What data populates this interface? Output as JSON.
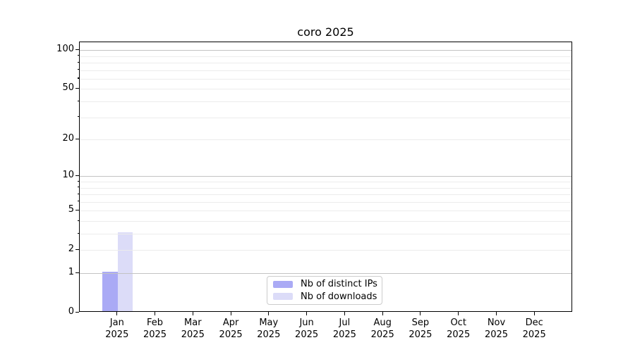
{
  "chart_data": {
    "type": "bar",
    "title": "coro 2025",
    "categories": [
      "Jan",
      "Feb",
      "Mar",
      "Apr",
      "May",
      "Jun",
      "Jul",
      "Aug",
      "Sep",
      "Oct",
      "Nov",
      "Dec"
    ],
    "category_year": "2025",
    "series": [
      {
        "name": "Nb of distinct IPs",
        "color": "#aaaaf5",
        "values": [
          1,
          0,
          0,
          0,
          0,
          0,
          0,
          0,
          0,
          0,
          0,
          0
        ]
      },
      {
        "name": "Nb of downloads",
        "color": "#dcdcf8",
        "values": [
          3,
          0,
          0,
          0,
          0,
          0,
          0,
          0,
          0,
          0,
          0,
          0
        ]
      }
    ],
    "yscale": "log1p",
    "ylim": [
      0,
      115
    ],
    "yticks": [
      0,
      1,
      2,
      5,
      10,
      20,
      50,
      100
    ],
    "major_grid_values": [
      1,
      10,
      100
    ],
    "minor_grid_values": [
      2,
      3,
      4,
      5,
      6,
      7,
      8,
      9,
      20,
      30,
      40,
      50,
      60,
      70,
      80,
      90
    ],
    "grid": true,
    "legend_position": "lower-center",
    "colors": {
      "major_grid": "#c3c3c3",
      "minor_grid": "#ececec",
      "axis": "#000000",
      "background": "#ffffff"
    }
  }
}
